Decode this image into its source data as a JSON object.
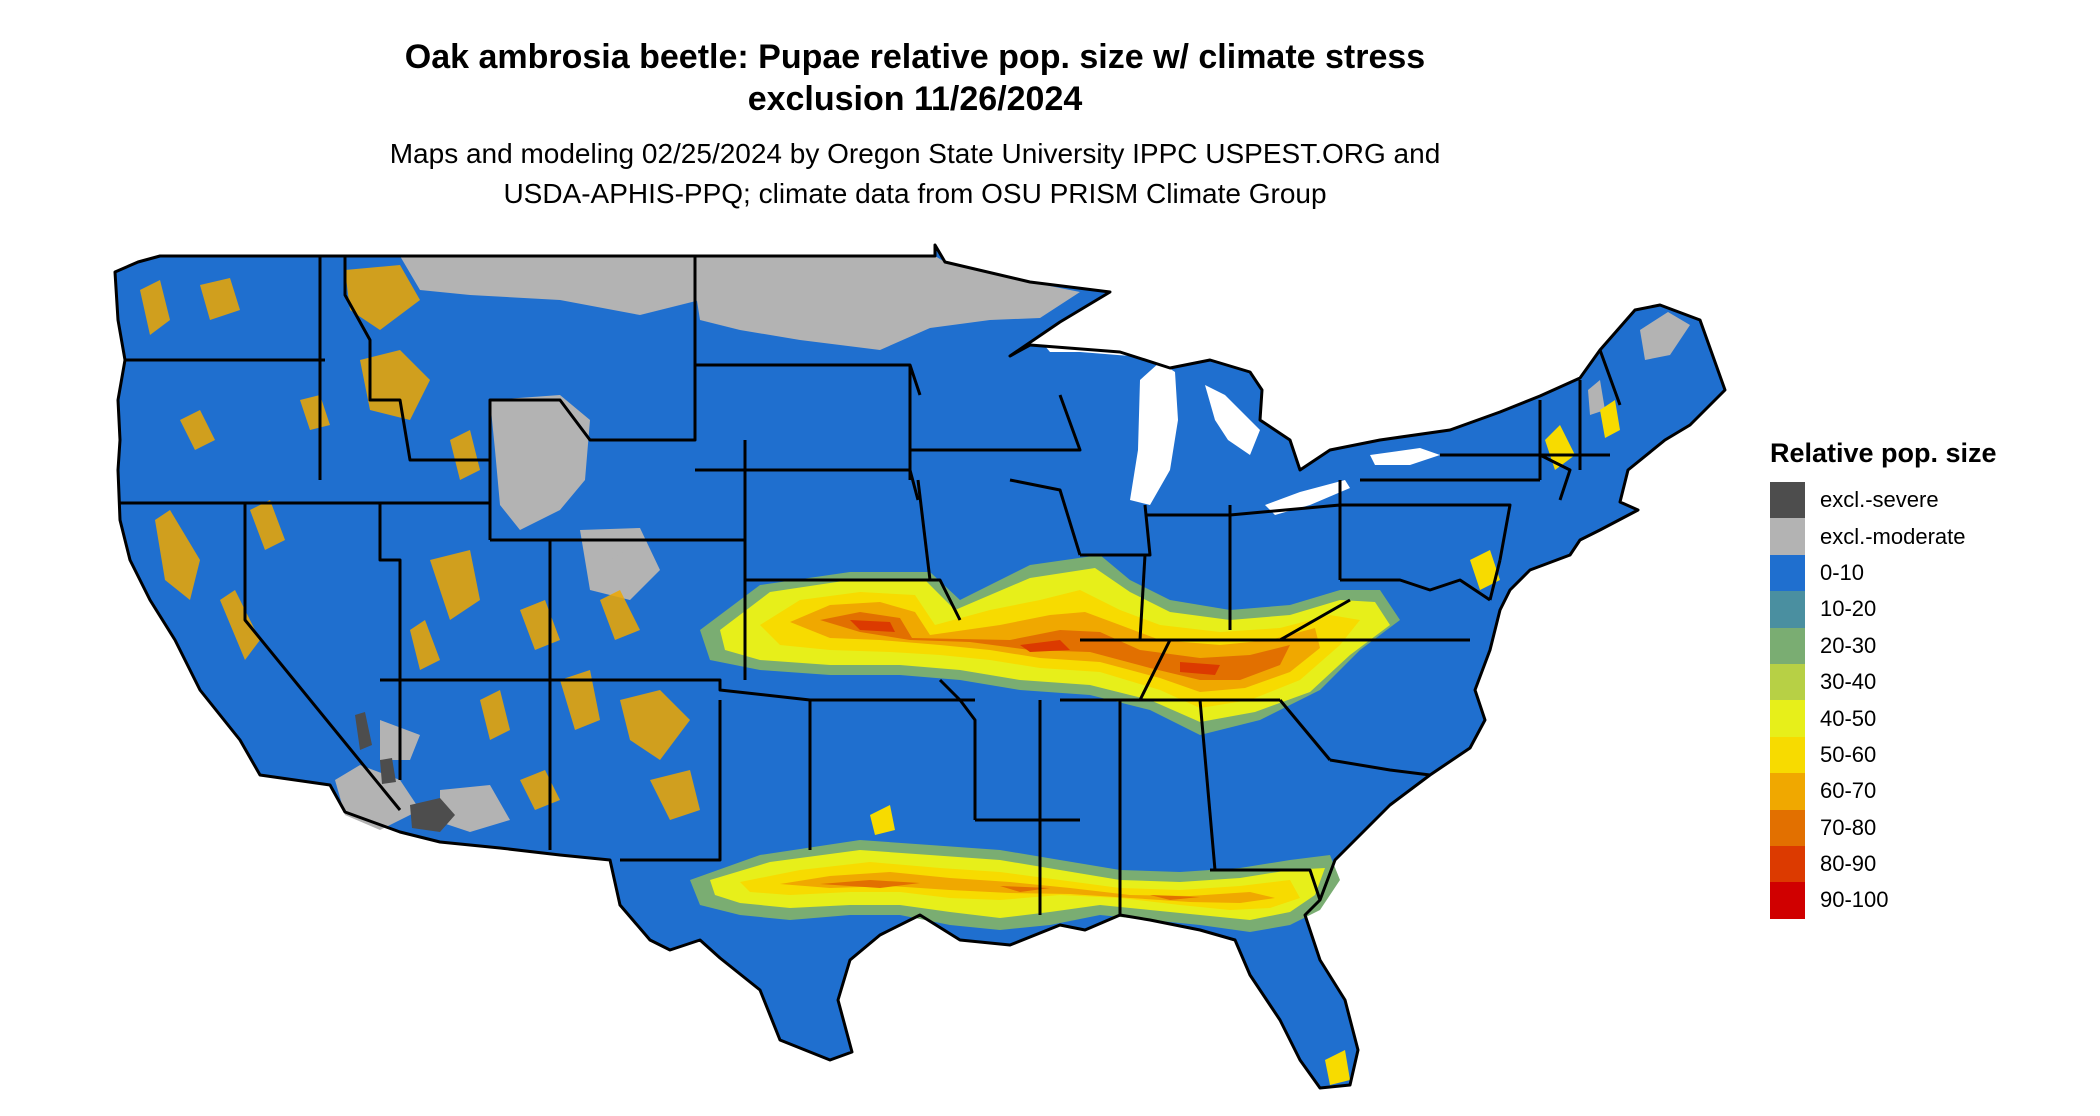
{
  "title_line1": "Oak ambrosia beetle: Pupae relative pop. size w/ climate stress",
  "title_line2": "exclusion 11/26/2024",
  "subtitle_line1": "Maps and modeling 02/25/2024 by Oregon State University IPPC USPEST.ORG and",
  "subtitle_line2": "USDA-APHIS-PPQ; climate data from OSU PRISM Climate Group",
  "legend": {
    "title": "Relative pop. size",
    "items": [
      {
        "label": "excl.-severe",
        "color": "#4d4d4d"
      },
      {
        "label": "excl.-moderate",
        "color": "#b3b3b3"
      },
      {
        "label": "0-10",
        "color": "#1f6fcf"
      },
      {
        "label": "10-20",
        "color": "#4a8fa0"
      },
      {
        "label": "20-30",
        "color": "#7aad72"
      },
      {
        "label": "30-40",
        "color": "#b7d045"
      },
      {
        "label": "40-50",
        "color": "#e7ef1a"
      },
      {
        "label": "50-60",
        "color": "#f7db00"
      },
      {
        "label": "60-70",
        "color": "#f0a800"
      },
      {
        "label": "70-80",
        "color": "#e27000"
      },
      {
        "label": "80-90",
        "color": "#dc3a00"
      },
      {
        "label": "90-100",
        "color": "#d00000"
      }
    ]
  },
  "colors": {
    "base": "#1f6fcf",
    "border": "#000000",
    "excluded_moderate": "#b3b3b3",
    "excluded_severe": "#4d4d4d"
  }
}
